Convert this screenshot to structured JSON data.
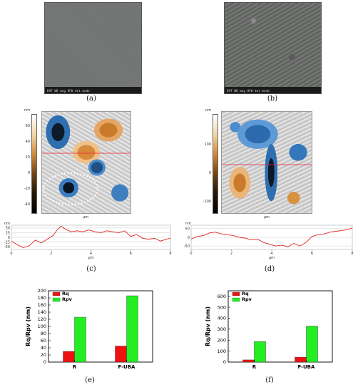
{
  "panels": {
    "a": {
      "caption": "(a)",
      "sem_info": "EHT  WD  mag  HFW  det  mode"
    },
    "b": {
      "caption": "(b)",
      "sem_info": "EHT  WD  mag  HFW  det  mode"
    },
    "c": {
      "caption": "(c)",
      "afm_unit": "nm",
      "afm_ticks": [
        "60",
        "40",
        "20",
        "0",
        "-20",
        "-40"
      ],
      "afm_xunit": "μm",
      "profile_unit": "nm",
      "profile_yticks": [
        "50",
        "25",
        "0",
        "-25",
        "-50"
      ],
      "profile_xticks": [
        "0",
        "2",
        "4",
        "6",
        "8"
      ],
      "profile_xlabel": "μm"
    },
    "d": {
      "caption": "(d)",
      "afm_unit": "nm",
      "afm_ticks": [
        "100",
        "0",
        "-100"
      ],
      "afm_xunit": "μm",
      "profile_unit": "nm",
      "profile_yticks": [
        "50",
        "0",
        "-50"
      ],
      "profile_xticks": [
        "0",
        "2",
        "4",
        "6",
        "8"
      ],
      "profile_xlabel": "μm"
    },
    "e": {
      "caption": "(e)"
    },
    "f": {
      "caption": "(f)"
    }
  },
  "colors": {
    "rq": "#ee1111",
    "rpv": "#22ee22"
  },
  "chart_data": [
    {
      "type": "bar",
      "categories": [
        "R",
        "F-UBA"
      ],
      "series": [
        {
          "name": "Rq",
          "values": [
            30,
            45
          ]
        },
        {
          "name": "Rpv",
          "values": [
            126,
            186
          ]
        }
      ],
      "ylabel": "Rq/Rpv (nm)",
      "ylim": [
        0,
        200
      ],
      "yticks": [
        0,
        20,
        40,
        60,
        80,
        100,
        120,
        140,
        160,
        180,
        200
      ],
      "legend": "top-left"
    },
    {
      "type": "bar",
      "categories": [
        "R",
        "F-UBA"
      ],
      "series": [
        {
          "name": "Rq",
          "values": [
            20,
            45
          ]
        },
        {
          "name": "Rpv",
          "values": [
            187,
            328
          ]
        }
      ],
      "ylabel": "Rq/Rpv (nm)",
      "ylim": [
        0,
        650
      ],
      "yticks": [
        0,
        100,
        200,
        300,
        400,
        500,
        600
      ],
      "legend": "top-left"
    },
    {
      "type": "line",
      "title": "",
      "xlabel": "μm",
      "ylabel": "nm",
      "xlim": [
        0,
        8
      ],
      "ylim": [
        -65,
        65
      ],
      "x": [
        0,
        0.3,
        0.6,
        0.9,
        1.2,
        1.5,
        1.8,
        2.1,
        2.3,
        2.5,
        2.7,
        3.0,
        3.3,
        3.6,
        3.9,
        4.2,
        4.5,
        4.8,
        5.1,
        5.4,
        5.7,
        6.0,
        6.3,
        6.6,
        6.9,
        7.2,
        7.5,
        7.8,
        8.0
      ],
      "y": [
        -20,
        -40,
        -55,
        -45,
        -15,
        -30,
        -10,
        10,
        40,
        60,
        45,
        30,
        35,
        30,
        40,
        30,
        25,
        35,
        30,
        25,
        35,
        5,
        15,
        -5,
        -10,
        -5,
        -20,
        -10,
        -5
      ]
    },
    {
      "type": "line",
      "title": "",
      "xlabel": "μm",
      "ylabel": "nm",
      "xlim": [
        0,
        8
      ],
      "ylim": [
        -70,
        70
      ],
      "x": [
        0,
        0.3,
        0.6,
        0.9,
        1.2,
        1.5,
        1.8,
        2.1,
        2.4,
        2.7,
        3.0,
        3.3,
        3.6,
        3.9,
        4.2,
        4.5,
        4.8,
        5.1,
        5.4,
        5.7,
        6.0,
        6.3,
        6.6,
        6.9,
        7.2,
        7.5,
        7.8,
        8.0
      ],
      "y": [
        -10,
        5,
        10,
        25,
        30,
        20,
        15,
        10,
        0,
        -5,
        -15,
        -10,
        -30,
        -40,
        -50,
        -45,
        -55,
        -35,
        -50,
        -30,
        5,
        15,
        20,
        30,
        35,
        40,
        45,
        55
      ]
    }
  ]
}
